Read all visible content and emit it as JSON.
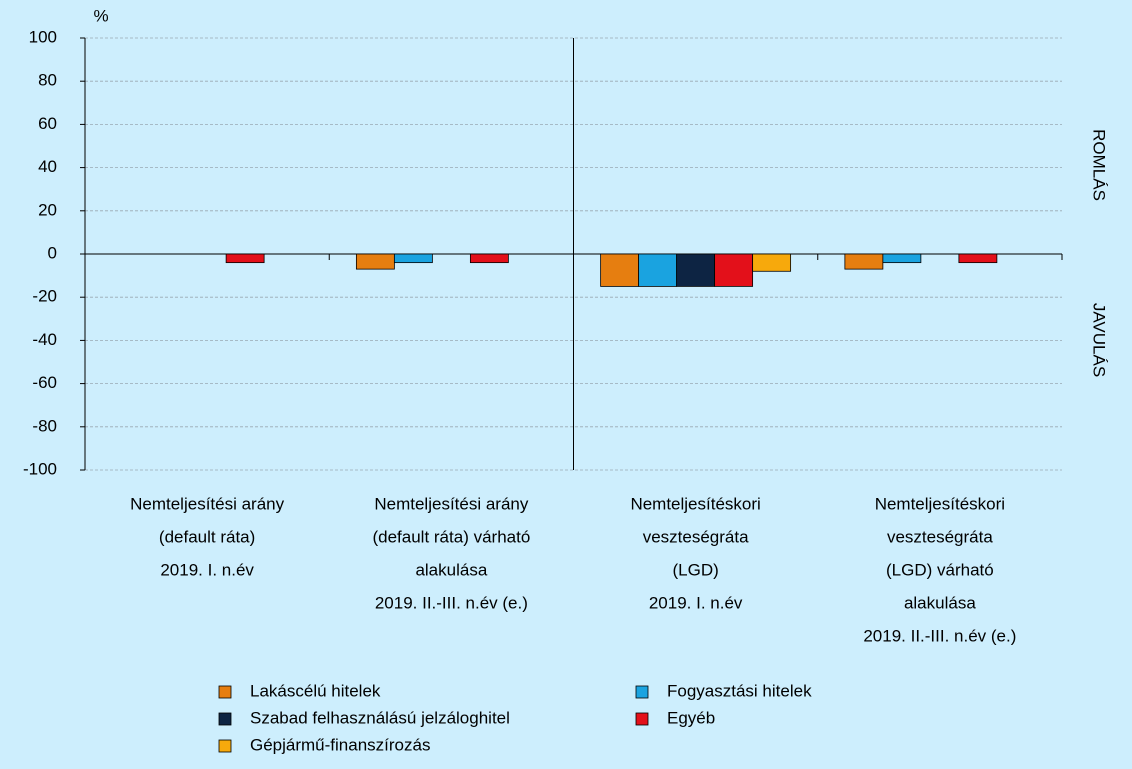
{
  "chart_data": {
    "type": "bar",
    "unit": "%",
    "categories": [
      [
        "Nemteljesítési arány",
        "(default ráta)",
        "2019. I. n.év"
      ],
      [
        "Nemteljesítési arány",
        "(default ráta) várható",
        "alakulása",
        "2019. II.-III. n.év (e.)"
      ],
      [
        "Nemteljesítéskori",
        "veszteségráta",
        "(LGD)",
        "2019. I. n.év"
      ],
      [
        "Nemteljesítéskori",
        "veszteségráta",
        "(LGD) várható",
        "alakulása",
        "2019. II.-III. n.év (e.)"
      ]
    ],
    "series": [
      {
        "name": "Lakáscélú hitelek",
        "color": "#e67e10",
        "values": [
          0,
          -7,
          -15,
          -7
        ]
      },
      {
        "name": "Fogyasztási hitelek",
        "color": "#1aa3e0",
        "values": [
          0,
          -4,
          -15,
          -4
        ]
      },
      {
        "name": "Szabad felhasználású jelzáloghitel",
        "color": "#0d2443",
        "values": [
          0,
          0,
          -15,
          0
        ]
      },
      {
        "name": "Egyéb",
        "color": "#e3101a",
        "values": [
          -4,
          -4,
          -15,
          -4
        ]
      },
      {
        "name": "Gépjármű-finanszírozás",
        "color": "#f7a90c",
        "values": [
          0,
          0,
          -8,
          0
        ]
      }
    ],
    "ylim": [
      -100,
      100
    ],
    "yticks": [
      -100,
      -80,
      -60,
      -40,
      -20,
      0,
      20,
      40,
      60,
      80,
      100
    ],
    "grid": true,
    "right_labels": {
      "upper": "ROMLÁS",
      "lower": "JAVULÁS"
    }
  }
}
